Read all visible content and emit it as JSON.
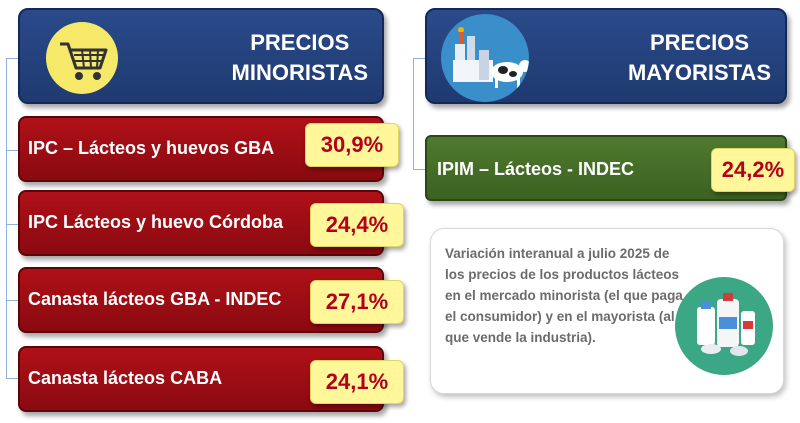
{
  "retail": {
    "title_line1": "PRECIOS",
    "title_line2": "MINORISTAS",
    "icon": "shopping-cart-icon",
    "items": [
      {
        "label": "IPC – Lácteos y huevos GBA",
        "value": "30,9%"
      },
      {
        "label": "IPC Lácteos y huevo Córdoba",
        "value": "24,4%"
      },
      {
        "label": "Canasta lácteos GBA - INDEC",
        "value": "27,1%"
      },
      {
        "label": "Canasta lácteos CABA",
        "value": "24,1%"
      }
    ]
  },
  "wholesale": {
    "title_line1": "PRECIOS",
    "title_line2": "MAYORISTAS",
    "icon": "dairy-farm-icon",
    "items": [
      {
        "label": "IPIM – Lácteos - INDEC",
        "value": "24,2%"
      }
    ]
  },
  "note": {
    "text": "Variación interanual a julio 2025 de los precios de los productos lácteos en el mercado minorista (el que paga el consumidor) y en el mayorista (al que vende la industria).",
    "icon": "dairy-products-icon"
  },
  "colors": {
    "header_blue": "#1f3a70",
    "retail_red": "#a00c14",
    "wholesale_green": "#4a7229",
    "value_yellow": "#fff79a",
    "value_text": "#b3001b"
  }
}
